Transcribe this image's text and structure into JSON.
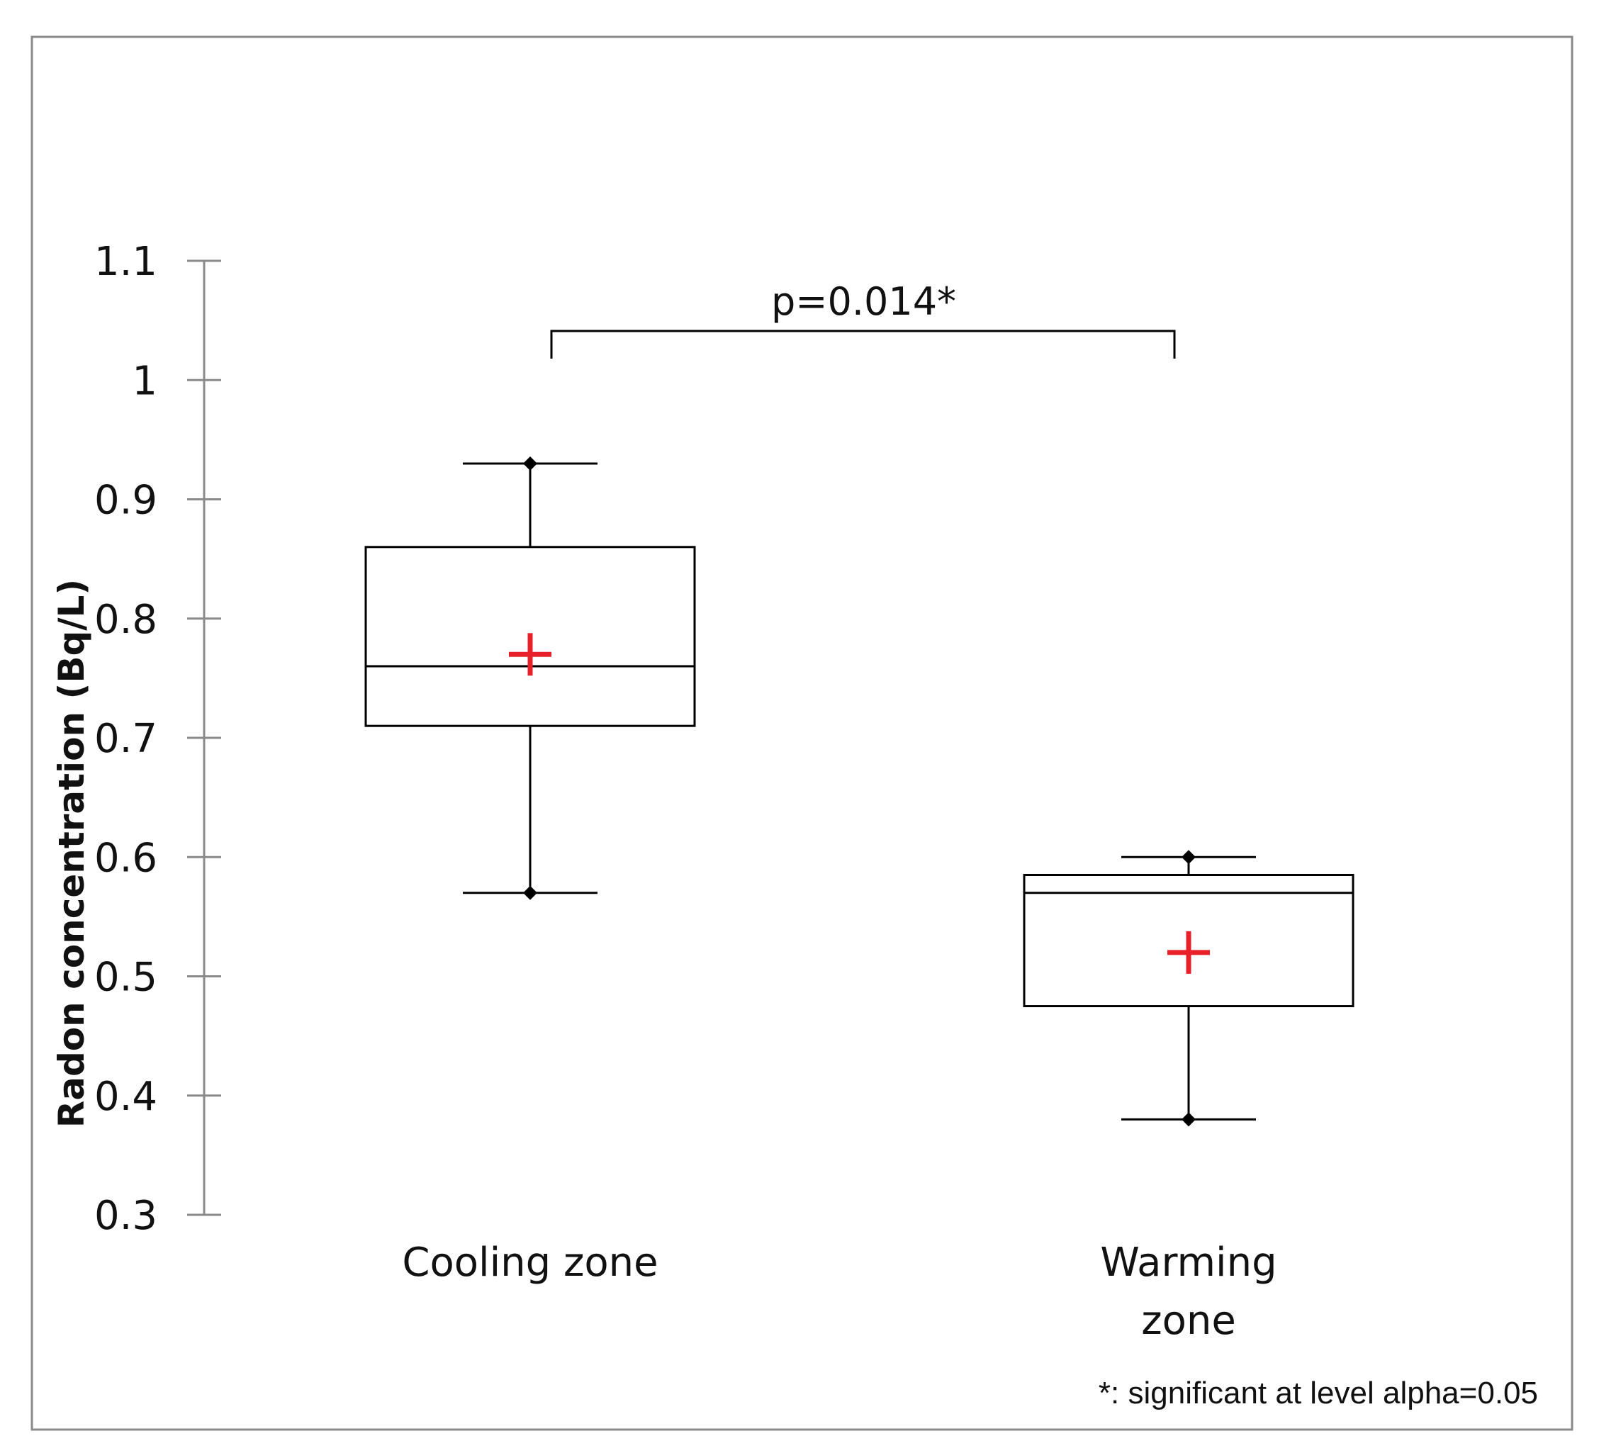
{
  "chart_data": {
    "type": "box",
    "ylabel": "Radon concentration (Bq/L)",
    "ylim": [
      0.3,
      1.1
    ],
    "yticks": [
      "0.3",
      "0.4",
      "0.5",
      "0.6",
      "0.7",
      "0.8",
      "0.9",
      "1",
      "1.1"
    ],
    "categories": [
      {
        "label_lines": [
          "Cooling zone"
        ]
      },
      {
        "label_lines": [
          "Warming",
          "zone"
        ]
      }
    ],
    "boxes": [
      {
        "min": 0.57,
        "q1": 0.71,
        "median": 0.76,
        "q3": 0.86,
        "max": 0.93,
        "mean": 0.77
      },
      {
        "min": 0.38,
        "q1": 0.475,
        "median": 0.57,
        "q3": 0.585,
        "max": 0.6,
        "mean": 0.52
      }
    ],
    "mean_marker_color": "#e8202a",
    "comparison": {
      "text": "p=0.014*",
      "from": 0,
      "to": 1
    },
    "footnote": "*: significant at level alpha=0.05",
    "grid": false,
    "legend": "none"
  }
}
